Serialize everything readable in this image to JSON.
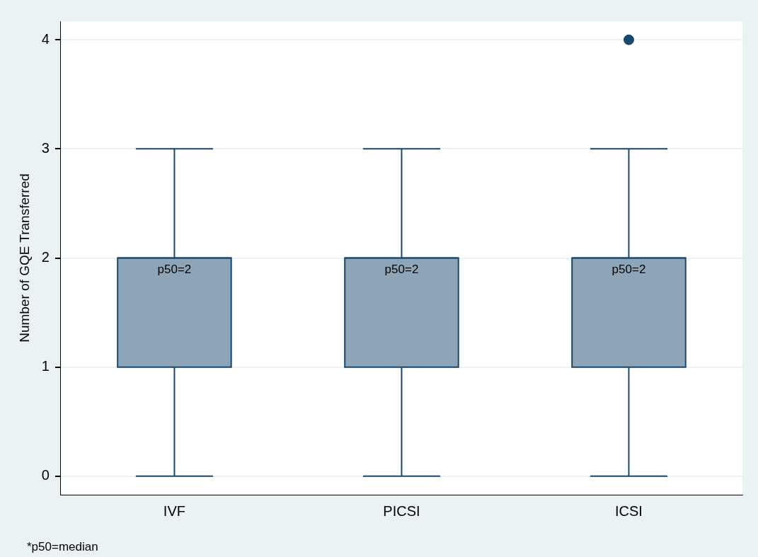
{
  "chart_data": {
    "type": "box",
    "ylabel": "Number of GQE Transferred",
    "categories": [
      "IVF",
      "PICSI",
      "ICSI"
    ],
    "boxes": [
      {
        "low": 0,
        "q1": 1,
        "median": 2,
        "q3": 2,
        "high": 3
      },
      {
        "low": 0,
        "q1": 1,
        "median": 2,
        "q3": 2,
        "high": 3
      },
      {
        "low": 0,
        "q1": 1,
        "median": 2,
        "q3": 2,
        "high": 3,
        "outliers": [
          4
        ]
      }
    ],
    "color": "#8ea5b8",
    "ylim": [
      -0.17,
      4.17
    ],
    "yticks": [
      0,
      1,
      2,
      3,
      4
    ],
    "grid": "y",
    "legend": false,
    "annotations": [
      {
        "text": "p50=2",
        "x": "IVF",
        "y": 2
      },
      {
        "text": "p50=2",
        "x": "PICSI",
        "y": 2
      },
      {
        "text": "p50=2",
        "x": "ICSI",
        "y": 2
      },
      "*p50=median"
    ]
  }
}
